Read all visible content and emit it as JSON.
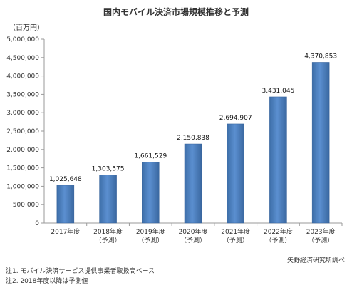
{
  "title": "国内モバイル決済市場規模推移と予測",
  "unit_label": "（百万円）",
  "source": "矢野経済研究所調べ",
  "notes": [
    "注1. モバイル決済サービス提供事業者取扱高ベース",
    "注2. 2018年度以降は予測値"
  ],
  "chart_data": {
    "type": "bar",
    "title": "国内モバイル決済市場規模推移と予測",
    "ylabel": "（百万円）",
    "xlabel": "",
    "ylim": [
      0,
      5000000
    ],
    "yticks": [
      "0",
      "500,000",
      "1,000,000",
      "1,500,000",
      "2,000,000",
      "2,500,000",
      "3,000,000",
      "3,500,000",
      "4,000,000",
      "4,500,000",
      "5,000,000"
    ],
    "grid": false,
    "legend": "none",
    "bar_color": "#4f81bd",
    "categories": [
      [
        "2017年度"
      ],
      [
        "2018年度",
        "（予測）"
      ],
      [
        "2019年度",
        "（予測）"
      ],
      [
        "2020年度",
        "（予測）"
      ],
      [
        "2021年度",
        "（予測）"
      ],
      [
        "2022年度",
        "（予測）"
      ],
      [
        "2023年度",
        "（予測）"
      ]
    ],
    "values": [
      1025648,
      1303575,
      1661529,
      2150838,
      2694907,
      3431045,
      4370853
    ],
    "value_labels": [
      "1,025,648",
      "1,303,575",
      "1,661,529",
      "2,150,838",
      "2,694,907",
      "3,431,045",
      "4,370,853"
    ]
  }
}
